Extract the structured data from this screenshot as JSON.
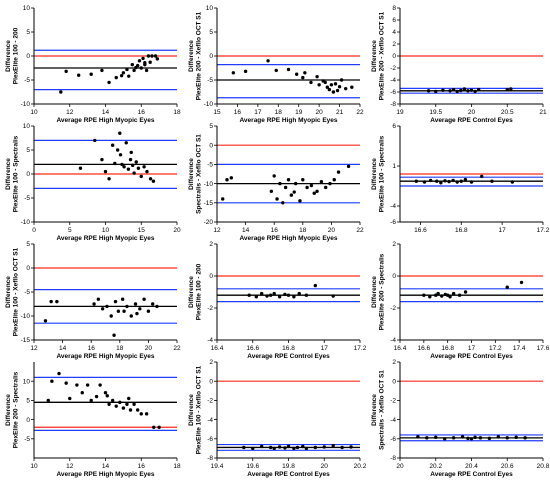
{
  "figure": {
    "colors": {
      "zero_line": "#ff2a1f",
      "mean_line": "#000000",
      "limit_line": "#1f3cff",
      "point": "#000000"
    }
  },
  "chart_data": [
    {
      "type": "scatter",
      "ylabel": "Difference\nPlexElite 100 - 200",
      "xlabel": "Average RPE High Myopic Eyes",
      "xlim": [
        10,
        18
      ],
      "ylim": [
        -10,
        10
      ],
      "xticks": [
        10,
        12,
        14,
        16,
        18
      ],
      "yticks": [
        -10,
        -5,
        0,
        5,
        10
      ],
      "hlines": {
        "zero": 0,
        "mean": -2.5,
        "upper": 1.2,
        "lower": -7
      },
      "points": [
        [
          11.5,
          -7.5
        ],
        [
          11.8,
          -3.2
        ],
        [
          12.5,
          -4
        ],
        [
          13.2,
          -3.8
        ],
        [
          13.8,
          -3
        ],
        [
          14.2,
          -5.5
        ],
        [
          14.6,
          -4.5
        ],
        [
          14.9,
          -4.1
        ],
        [
          15.0,
          -3.5
        ],
        [
          15.2,
          -2.8
        ],
        [
          15.3,
          -4.2
        ],
        [
          15.5,
          -1.8
        ],
        [
          15.6,
          -3
        ],
        [
          15.8,
          -2
        ],
        [
          15.9,
          -1
        ],
        [
          16.0,
          -2.5
        ],
        [
          16.1,
          -0.5
        ],
        [
          16.2,
          -1.8
        ],
        [
          16.3,
          -3
        ],
        [
          16.4,
          0
        ],
        [
          16.5,
          -1.3
        ],
        [
          16.6,
          0
        ],
        [
          16.8,
          0
        ],
        [
          16.9,
          -0.6
        ],
        [
          15.7,
          -2.4
        ],
        [
          16.2,
          -1.4
        ]
      ]
    },
    {
      "type": "scatter",
      "ylabel": "Difference\nPlexElite 200 - Xefllo OCT S1",
      "xlabel": "Average RPE High Myopic Eyes",
      "xlim": [
        15,
        22
      ],
      "ylim": [
        -10,
        10
      ],
      "xticks": [
        15,
        16,
        17,
        18,
        19,
        20,
        21,
        22
      ],
      "yticks": [
        -10,
        -5,
        0,
        5,
        10
      ],
      "hlines": {
        "zero": 0,
        "mean": -5,
        "upper": -1.8,
        "lower": -8.7
      },
      "points": [
        [
          15.8,
          -3.5
        ],
        [
          16.4,
          -3.2
        ],
        [
          17.5,
          -1
        ],
        [
          17.9,
          -3
        ],
        [
          18.5,
          -2.8
        ],
        [
          18.9,
          -3.8
        ],
        [
          19.2,
          -4.5
        ],
        [
          19.3,
          -3.5
        ],
        [
          19.6,
          -5.5
        ],
        [
          19.9,
          -4.3
        ],
        [
          20.0,
          -6
        ],
        [
          20.2,
          -5.2
        ],
        [
          20.3,
          -5.5
        ],
        [
          20.4,
          -6.5
        ],
        [
          20.5,
          -7
        ],
        [
          20.6,
          -6
        ],
        [
          20.8,
          -5.8
        ],
        [
          20.9,
          -7.2
        ],
        [
          21.0,
          -6.4
        ],
        [
          21.1,
          -5
        ],
        [
          21.3,
          -6.8
        ],
        [
          21.6,
          -6.5
        ],
        [
          20.7,
          -7.5
        ]
      ]
    },
    {
      "type": "scatter",
      "ylabel": "Difference\nPlexElite 200 - Xefllo OCT S1",
      "xlabel": "Average RPE  Control Eyes",
      "xlim": [
        19,
        21
      ],
      "ylim": [
        -8,
        8
      ],
      "xticks": [
        19.0,
        19.5,
        20.0,
        20.5,
        21.0
      ],
      "yticks": [
        -8,
        -6,
        -4,
        -2,
        0,
        2,
        4,
        6,
        8
      ],
      "hlines": {
        "zero": 0,
        "mean": -5.8,
        "upper": -5.4,
        "lower": -6.2
      },
      "points": [
        [
          19.4,
          -5.8
        ],
        [
          19.5,
          -5.9
        ],
        [
          19.6,
          -5.7
        ],
        [
          19.7,
          -5.8
        ],
        [
          19.75,
          -5.6
        ],
        [
          19.8,
          -5.9
        ],
        [
          19.85,
          -5.75
        ],
        [
          19.9,
          -5.5
        ],
        [
          19.95,
          -5.8
        ],
        [
          20.0,
          -5.7
        ],
        [
          20.05,
          -5.9
        ],
        [
          20.1,
          -5.6
        ],
        [
          20.5,
          -5.6
        ],
        [
          20.55,
          -5.5
        ]
      ]
    },
    {
      "type": "scatter",
      "ylabel": "Difference\nPlexElite 100 - Spectralis",
      "xlabel": "Average RPE High Myopic Eyes",
      "xlim": [
        0,
        20
      ],
      "ylim": [
        -10,
        10
      ],
      "xticks": [
        0,
        5,
        10,
        15,
        20
      ],
      "yticks": [
        -10,
        -5,
        0,
        5,
        10
      ],
      "hlines": {
        "zero": 0,
        "mean": 2,
        "upper": 7,
        "lower": -3
      },
      "points": [
        [
          6.5,
          1.2
        ],
        [
          8.5,
          7
        ],
        [
          9.5,
          3
        ],
        [
          10.0,
          0.5
        ],
        [
          10.5,
          -1
        ],
        [
          11.0,
          6
        ],
        [
          11.3,
          2.2
        ],
        [
          11.7,
          5
        ],
        [
          12.0,
          8.5
        ],
        [
          12.3,
          2
        ],
        [
          12.6,
          1.5
        ],
        [
          12.9,
          6.5
        ],
        [
          13.2,
          1
        ],
        [
          13.5,
          3
        ],
        [
          13.8,
          1.8
        ],
        [
          14.0,
          0.2
        ],
        [
          14.3,
          2.5
        ],
        [
          14.6,
          1.2
        ],
        [
          15.0,
          -0.5
        ],
        [
          15.4,
          1.5
        ],
        [
          15.8,
          0.5
        ],
        [
          16.3,
          -1
        ],
        [
          16.7,
          -1.5
        ],
        [
          12.1,
          4
        ],
        [
          13.6,
          4.5
        ]
      ]
    },
    {
      "type": "scatter",
      "ylabel": "Difference\nSpectralis - Xefllo OCT S1",
      "xlabel": "Average RPE High Myopic Eyes",
      "xlim": [
        12,
        22
      ],
      "ylim": [
        -20,
        5
      ],
      "xticks": [
        12,
        14,
        16,
        18,
        20,
        22
      ],
      "yticks": [
        -20,
        -15,
        -10,
        -5,
        0,
        5
      ],
      "hlines": {
        "zero": 0,
        "mean": -10,
        "upper": -5,
        "lower": -15
      },
      "points": [
        [
          12.4,
          -14
        ],
        [
          12.7,
          -9
        ],
        [
          13.0,
          -8.5
        ],
        [
          15.8,
          -12
        ],
        [
          16.0,
          -8
        ],
        [
          16.2,
          -14
        ],
        [
          16.4,
          -10
        ],
        [
          16.6,
          -15
        ],
        [
          16.8,
          -11
        ],
        [
          17.0,
          -9
        ],
        [
          17.2,
          -13
        ],
        [
          17.5,
          -10
        ],
        [
          17.8,
          -14.5
        ],
        [
          18.0,
          -9
        ],
        [
          18.3,
          -11
        ],
        [
          18.6,
          -10.5
        ],
        [
          19.0,
          -12
        ],
        [
          19.3,
          -9.5
        ],
        [
          19.6,
          -11
        ],
        [
          19.9,
          -10
        ],
        [
          20.2,
          -9
        ],
        [
          20.5,
          -7
        ],
        [
          21.2,
          -5.5
        ],
        [
          17.4,
          -12.2
        ],
        [
          18.8,
          -12.5
        ]
      ]
    },
    {
      "type": "scatter",
      "ylabel": "Difference\nPlexElite 100 - Spectralis",
      "xlabel": "",
      "xlim": [
        16.5,
        17.2
      ],
      "ylim": [
        -6,
        6
      ],
      "xticks": [
        16.6,
        16.8,
        17.0,
        17.2
      ],
      "yticks": [
        -6,
        -4,
        1,
        6
      ],
      "hlines": {
        "zero": 0,
        "mean": -0.9,
        "upper": -0.4,
        "lower": -1.5
      },
      "points": [
        [
          16.58,
          -0.9
        ],
        [
          16.62,
          -1.0
        ],
        [
          16.65,
          -0.8
        ],
        [
          16.68,
          -0.9
        ],
        [
          16.7,
          -1.1
        ],
        [
          16.72,
          -0.85
        ],
        [
          16.74,
          -0.95
        ],
        [
          16.76,
          -0.8
        ],
        [
          16.78,
          -1.0
        ],
        [
          16.8,
          -0.9
        ],
        [
          16.82,
          -0.7
        ],
        [
          16.85,
          -1.0
        ],
        [
          16.9,
          -0.3
        ],
        [
          16.95,
          -0.9
        ],
        [
          17.05,
          -1.0
        ]
      ]
    },
    {
      "type": "scatter",
      "ylabel": "Difference\nPlexElite 100 - Xefllo OCT S1",
      "xlabel": "Average RPE High Myopic Eyes",
      "xlim": [
        12,
        22
      ],
      "ylim": [
        -15,
        5
      ],
      "xticks": [
        12,
        14,
        16,
        18,
        20,
        22
      ],
      "yticks": [
        -15,
        -10,
        -5,
        0,
        5
      ],
      "hlines": {
        "zero": 0,
        "mean": -8,
        "upper": -4.5,
        "lower": -11.5
      },
      "points": [
        [
          12.8,
          -11
        ],
        [
          13.2,
          -7
        ],
        [
          13.6,
          -7
        ],
        [
          16.2,
          -7.5
        ],
        [
          16.5,
          -6.5
        ],
        [
          16.8,
          -8.5
        ],
        [
          17.1,
          -8
        ],
        [
          17.4,
          -10
        ],
        [
          17.7,
          -7
        ],
        [
          17.9,
          -9
        ],
        [
          18.2,
          -6.5
        ],
        [
          18.5,
          -8
        ],
        [
          18.8,
          -10
        ],
        [
          19.1,
          -7.5
        ],
        [
          19.4,
          -8.5
        ],
        [
          19.7,
          -6.5
        ],
        [
          20.0,
          -9
        ],
        [
          20.3,
          -7.5
        ],
        [
          20.6,
          -8
        ],
        [
          17.6,
          -14
        ],
        [
          18.3,
          -9
        ],
        [
          19.2,
          -9.5
        ]
      ]
    },
    {
      "type": "scatter",
      "ylabel": "Difference\nPlexElite 100 - 200",
      "xlabel": "Average RPE  Control Eyes",
      "xlim": [
        16.4,
        17.2
      ],
      "ylim": [
        -4,
        2
      ],
      "xticks": [
        16.4,
        16.6,
        16.8,
        17.0,
        17.2
      ],
      "yticks": [
        -4,
        -2,
        0,
        2
      ],
      "hlines": {
        "zero": 0,
        "mean": -1.2,
        "upper": -0.8,
        "lower": -1.6
      },
      "points": [
        [
          16.58,
          -1.2
        ],
        [
          16.62,
          -1.3
        ],
        [
          16.65,
          -1.1
        ],
        [
          16.68,
          -1.25
        ],
        [
          16.7,
          -1.2
        ],
        [
          16.72,
          -1.1
        ],
        [
          16.75,
          -1.3
        ],
        [
          16.78,
          -1.15
        ],
        [
          16.8,
          -1.2
        ],
        [
          16.83,
          -1.3
        ],
        [
          16.86,
          -1.1
        ],
        [
          16.9,
          -1.2
        ],
        [
          16.95,
          -0.6
        ],
        [
          17.05,
          -1.25
        ]
      ]
    },
    {
      "type": "scatter",
      "ylabel": "Difference\nPlexElite 200 - Spectralis",
      "xlabel": "Average RPE  Control Eyes",
      "xlim": [
        16.4,
        17.6
      ],
      "ylim": [
        -4,
        2
      ],
      "xticks": [
        16.4,
        16.6,
        16.8,
        17.0,
        17.2,
        17.4,
        17.6
      ],
      "yticks": [
        -4,
        -2,
        0,
        2
      ],
      "hlines": {
        "zero": 0,
        "mean": -1.2,
        "upper": -0.8,
        "lower": -1.6
      },
      "points": [
        [
          16.6,
          -1.2
        ],
        [
          16.65,
          -1.3
        ],
        [
          16.7,
          -1.2
        ],
        [
          16.72,
          -1.1
        ],
        [
          16.75,
          -1.25
        ],
        [
          16.78,
          -1.15
        ],
        [
          16.8,
          -1.2
        ],
        [
          16.82,
          -1.3
        ],
        [
          16.85,
          -1.1
        ],
        [
          16.9,
          -1.2
        ],
        [
          16.95,
          -1.0
        ],
        [
          17.3,
          -0.7
        ],
        [
          17.42,
          -0.4
        ]
      ]
    },
    {
      "type": "scatter",
      "ylabel": "Difference\nPlexElite 200 - Spectralis",
      "xlabel": "Average RPE High Myopic Eyes",
      "xlim": [
        10,
        18
      ],
      "ylim": [
        -10,
        15
      ],
      "xticks": [
        10,
        12,
        14,
        16,
        18
      ],
      "yticks": [
        -5,
        0,
        5,
        10
      ],
      "hlines": {
        "zero": -2,
        "mean": 4.5,
        "upper": 11,
        "lower": -2.8
      },
      "points": [
        [
          10.8,
          5
        ],
        [
          11.0,
          10
        ],
        [
          11.4,
          12
        ],
        [
          11.8,
          9.5
        ],
        [
          12.0,
          5.5
        ],
        [
          12.4,
          9
        ],
        [
          12.7,
          7
        ],
        [
          13.0,
          9
        ],
        [
          13.2,
          5
        ],
        [
          13.5,
          6
        ],
        [
          13.7,
          9
        ],
        [
          14.0,
          7
        ],
        [
          14.2,
          4
        ],
        [
          14.4,
          5
        ],
        [
          14.6,
          3.5
        ],
        [
          14.8,
          4.5
        ],
        [
          15.0,
          3
        ],
        [
          15.2,
          4
        ],
        [
          15.4,
          2.5
        ],
        [
          15.6,
          4
        ],
        [
          15.8,
          2.5
        ],
        [
          16.0,
          1.5
        ],
        [
          16.3,
          1.5
        ],
        [
          16.7,
          -2
        ],
        [
          17.0,
          -2
        ],
        [
          15.3,
          5.5
        ],
        [
          14.1,
          6.2
        ]
      ]
    },
    {
      "type": "scatter",
      "ylabel": "Difference\nPlexElite 100 - Xefllo OCT S1",
      "xlabel": "Average RPE  Control Eyes",
      "xlim": [
        19.4,
        20.2
      ],
      "ylim": [
        -8,
        2
      ],
      "xticks": [
        19.4,
        19.6,
        19.8,
        20.0,
        20.2
      ],
      "yticks": [
        -8,
        -6,
        -4,
        -2,
        0,
        2
      ],
      "hlines": {
        "zero": 0,
        "mean": -6.9,
        "upper": -6.6,
        "lower": -7.2
      },
      "points": [
        [
          19.55,
          -6.9
        ],
        [
          19.6,
          -7.0
        ],
        [
          19.65,
          -6.8
        ],
        [
          19.7,
          -6.9
        ],
        [
          19.72,
          -7.0
        ],
        [
          19.75,
          -6.85
        ],
        [
          19.78,
          -6.95
        ],
        [
          19.8,
          -6.8
        ],
        [
          19.83,
          -7.0
        ],
        [
          19.85,
          -6.9
        ],
        [
          19.88,
          -6.8
        ],
        [
          19.9,
          -7.0
        ],
        [
          19.95,
          -6.9
        ],
        [
          20.0,
          -6.85
        ],
        [
          20.05,
          -6.7
        ],
        [
          20.1,
          -6.9
        ],
        [
          20.15,
          -6.85
        ]
      ]
    },
    {
      "type": "scatter",
      "ylabel": "Difference\nSpectralis - Xefllo OCT S1",
      "xlabel": "Average RPE  Control Eyes",
      "xlim": [
        20.0,
        20.8
      ],
      "ylim": [
        -8,
        2
      ],
      "xticks": [
        20.0,
        20.2,
        20.4,
        20.6,
        20.8
      ],
      "yticks": [
        -8,
        -6,
        -4,
        -2,
        0,
        2
      ],
      "hlines": {
        "zero": 0,
        "mean": -5.9,
        "upper": -5.6,
        "lower": -6.2
      },
      "points": [
        [
          20.1,
          -5.8
        ],
        [
          20.15,
          -5.9
        ],
        [
          20.2,
          -5.85
        ],
        [
          20.25,
          -6.0
        ],
        [
          20.3,
          -5.9
        ],
        [
          20.35,
          -5.8
        ],
        [
          20.38,
          -5.95
        ],
        [
          20.4,
          -6.0
        ],
        [
          20.42,
          -5.85
        ],
        [
          20.45,
          -5.9
        ],
        [
          20.5,
          -5.95
        ],
        [
          20.55,
          -5.8
        ],
        [
          20.6,
          -5.9
        ],
        [
          20.65,
          -5.85
        ],
        [
          20.7,
          -5.9
        ]
      ]
    }
  ]
}
